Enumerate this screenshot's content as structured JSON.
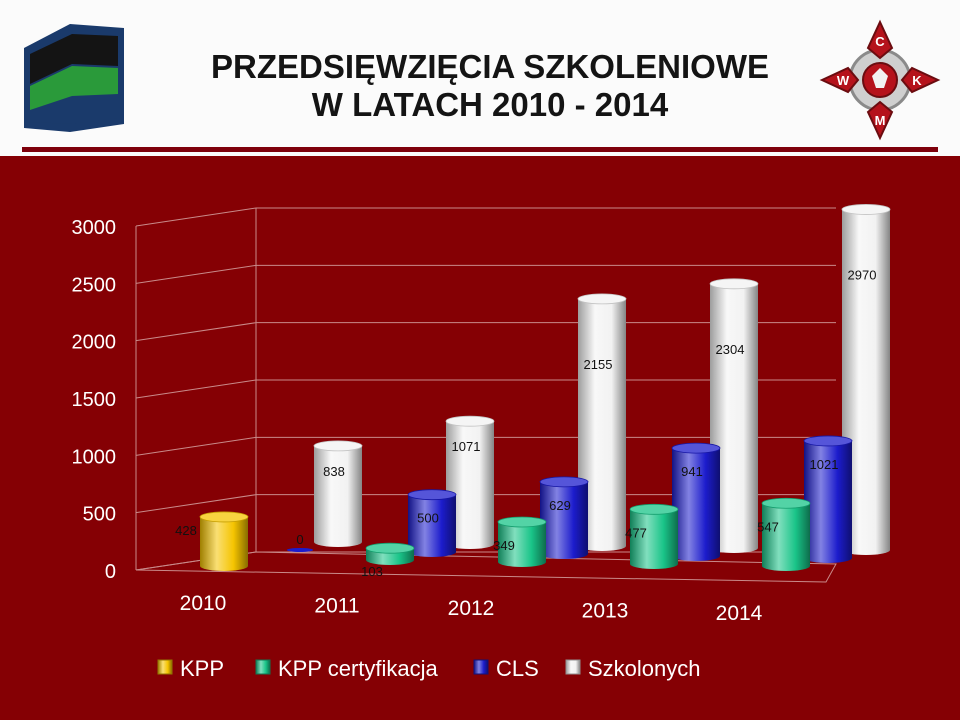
{
  "title": {
    "line1": "PRZEDSIĘWZIĘCIA SZKOLENIOWE",
    "line2": "W LATACH 2010 - 2014"
  },
  "logos": {
    "left": {
      "icon": "flag-emblem-icon",
      "colors": [
        "#1a3a6b",
        "#111111",
        "#2a9a3a"
      ]
    },
    "right": {
      "icon": "ckwm-cross-emblem-icon",
      "letters": [
        "C",
        "W",
        "K",
        "M"
      ],
      "color": "#b5121b"
    }
  },
  "colors": {
    "background": "#850004",
    "header_background": "#fbfbfb",
    "rule": "#7e000b",
    "KPP": "#f5c400",
    "KPP certyfikacja": "#19c488",
    "CLS": "#1c1ccc",
    "Szkolonych": "#f2f2f2"
  },
  "chart_data": {
    "type": "bar",
    "style": "3d-clustered-cylinder",
    "categories": [
      "2010",
      "2011",
      "2012",
      "2013",
      "2014"
    ],
    "series": [
      {
        "name": "KPP",
        "values": [
          428,
          null,
          null,
          null,
          null
        ]
      },
      {
        "name": "KPP certyfikacja",
        "values": [
          null,
          103,
          349,
          477,
          547
        ]
      },
      {
        "name": "CLS",
        "values": [
          0,
          500,
          629,
          941,
          1021
        ]
      },
      {
        "name": "Szkolonych",
        "values": [
          838,
          1071,
          2155,
          2304,
          2970
        ]
      }
    ],
    "ylim": [
      0,
      3000
    ],
    "yticks": [
      "0",
      "500",
      "1000",
      "1500",
      "2000",
      "2500",
      "3000"
    ],
    "grid": true,
    "legend_position": "bottom"
  }
}
